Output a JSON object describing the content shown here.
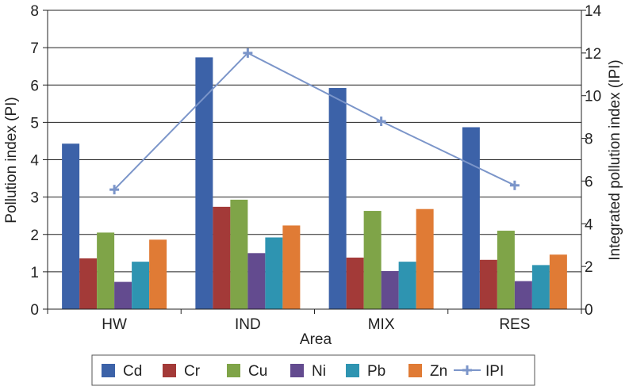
{
  "chart_data": {
    "type": "bar",
    "categories": [
      "HW",
      "IND",
      "MIX",
      "RES"
    ],
    "xlabel": "Area",
    "ylabel": "Pollution index (PI)",
    "y2label": "Integrated pollution index (IPI)",
    "ylim": [
      0,
      8
    ],
    "y2lim": [
      0,
      14
    ],
    "yticks": [
      "0",
      "1",
      "2",
      "3",
      "4",
      "5",
      "6",
      "7",
      "8"
    ],
    "y2ticks": [
      "0",
      "2",
      "4",
      "6",
      "8",
      "10",
      "12",
      "14"
    ],
    "grid": true,
    "legend_position": "bottom",
    "series": [
      {
        "name": "Cd",
        "color": "#3c62a8",
        "values": [
          4.43,
          6.74,
          5.92,
          4.87
        ]
      },
      {
        "name": "Cr",
        "color": "#a33a38",
        "values": [
          1.36,
          2.74,
          1.38,
          1.32
        ]
      },
      {
        "name": "Cu",
        "color": "#7fa448",
        "values": [
          2.05,
          2.93,
          2.63,
          2.1
        ]
      },
      {
        "name": "Ni",
        "color": "#634b8f",
        "values": [
          0.73,
          1.5,
          1.02,
          0.75
        ]
      },
      {
        "name": "Pb",
        "color": "#2e94b1",
        "values": [
          1.27,
          1.92,
          1.27,
          1.18
        ]
      },
      {
        "name": "Zn",
        "color": "#e07b35",
        "values": [
          1.86,
          2.24,
          2.68,
          1.46
        ]
      }
    ],
    "line_series": {
      "name": "IPI",
      "color": "#7b95c9",
      "axis": "right",
      "values": [
        5.6,
        12.0,
        8.8,
        5.8
      ]
    }
  }
}
